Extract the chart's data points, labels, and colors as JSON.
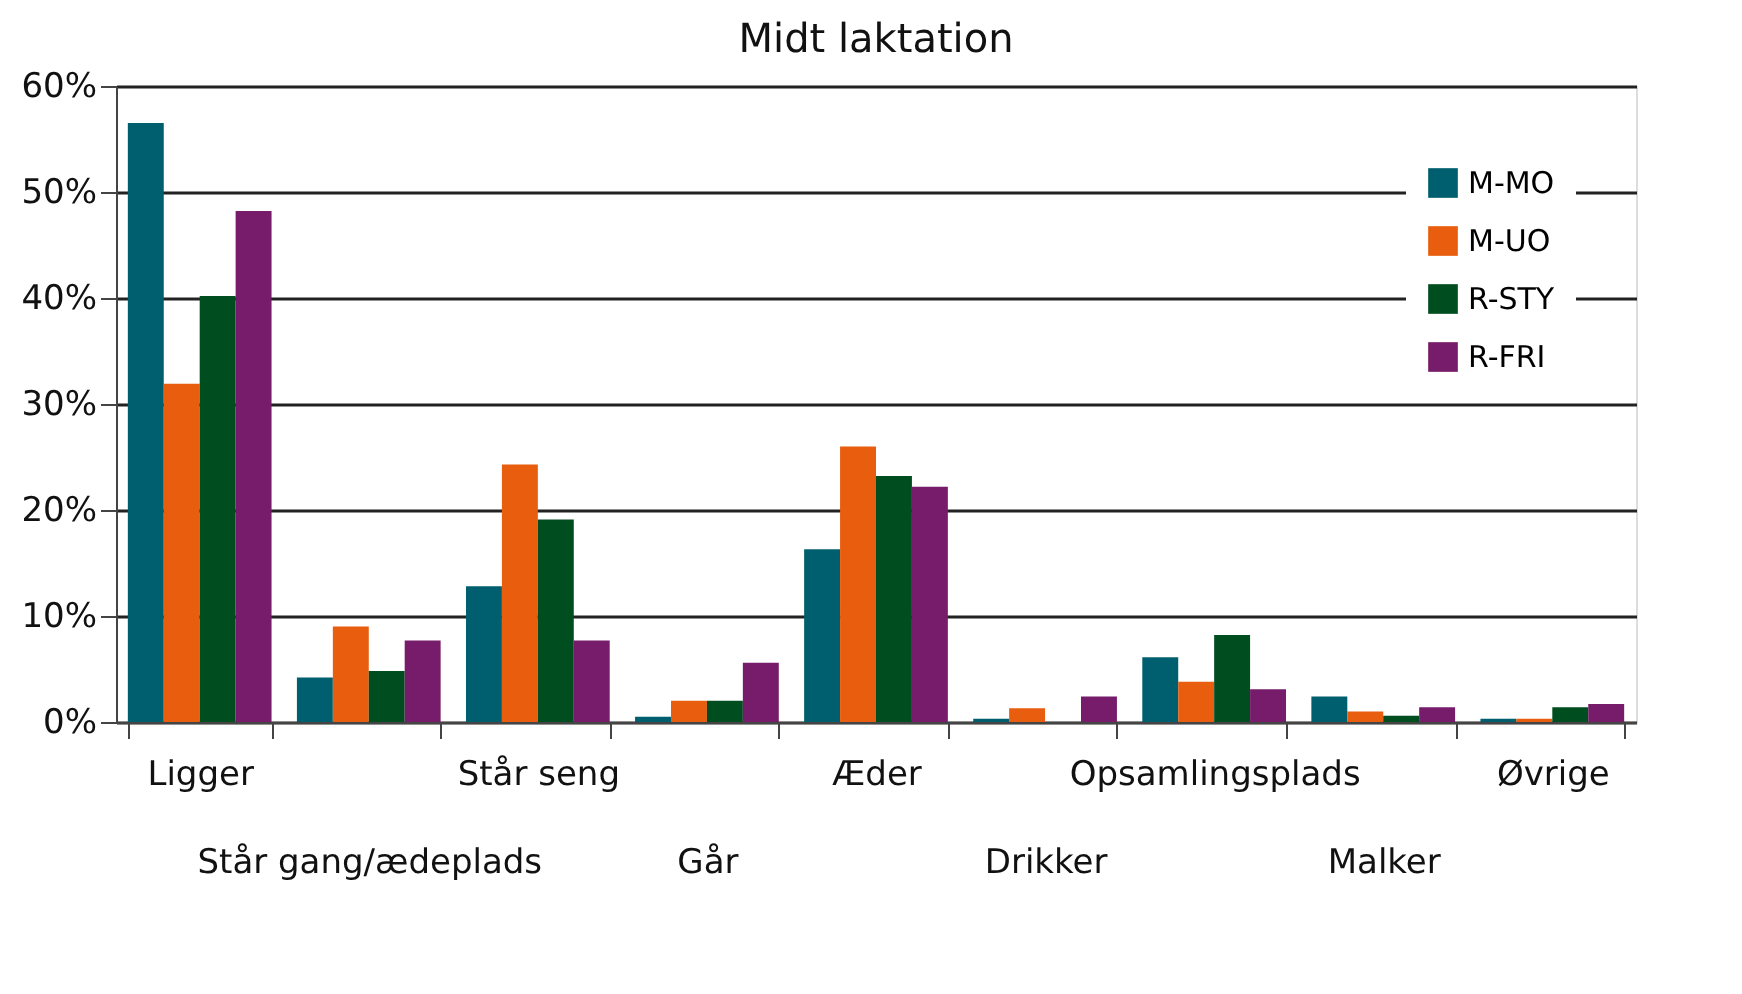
{
  "chart_data": {
    "type": "bar",
    "title": "Midt laktation",
    "categories": [
      "Ligger",
      "Står gang/ædeplads",
      "Står seng",
      "Går",
      "Æder",
      "Drikker",
      "Opsamlingsplads",
      "Malker",
      "Øvrige"
    ],
    "series": [
      {
        "name": "M-MO",
        "color": "#005f6e",
        "values": [
          56.5,
          4.2,
          12.8,
          0.5,
          16.3,
          0.3,
          6.1,
          2.4,
          0.3
        ]
      },
      {
        "name": "M-UO",
        "color": "#e85d0e",
        "values": [
          31.9,
          9.0,
          24.3,
          2.0,
          26.0,
          1.3,
          3.8,
          1.0,
          0.3
        ]
      },
      {
        "name": "R-STY",
        "color": "#004d20",
        "values": [
          40.2,
          4.8,
          19.1,
          2.0,
          23.2,
          null,
          8.2,
          0.6,
          1.4
        ]
      },
      {
        "name": "R-FRI",
        "color": "#761c6a",
        "values": [
          48.2,
          7.7,
          7.7,
          5.6,
          22.2,
          2.4,
          3.1,
          1.4,
          1.7
        ]
      }
    ],
    "ylim": [
      0,
      60
    ],
    "yticks": [
      {
        "value": 0,
        "label": "0%"
      },
      {
        "value": 10,
        "label": "10%"
      },
      {
        "value": 20,
        "label": "20%"
      },
      {
        "value": 30,
        "label": "30%"
      },
      {
        "value": 40,
        "label": "40%"
      },
      {
        "value": 50,
        "label": "50%"
      },
      {
        "value": 60,
        "label": "60%"
      }
    ],
    "grid": "y",
    "legend": "top right"
  }
}
